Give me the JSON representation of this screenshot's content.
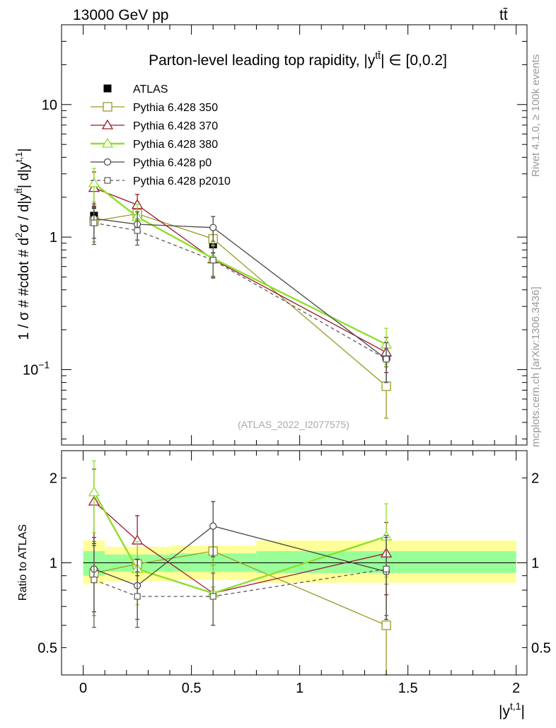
{
  "header": {
    "left": "13000 GeV pp",
    "right": "tt̄"
  },
  "side_labels": {
    "rivet": "Rivet 4.1.0, ≥ 100k events",
    "mcplots": "mcplots.cern.ch [arXiv:1306.3436]"
  },
  "colors": {
    "ATLAS": "#000000",
    "Pythia 6.428 350": "#9a9a26",
    "Pythia 6.428 370": "#9b1a2e",
    "Pythia 6.428 380": "#8fdf2a",
    "Pythia 6.428 p0": "#464646",
    "Pythia 6.428 p2010": "#5a5a5a",
    "band_inner": "#99ff99",
    "band_outer": "#ffff99"
  },
  "chart_data": [
    {
      "type": "line",
      "panel": "main",
      "title": "Parton-level leading top rapidity, |y̅^{tt̄}| ∈ [0,0.2]",
      "title_main": "Parton-level leading top rapidity, |y",
      "title_sup": "tt̄",
      "title_tail": "| ∈ [0,0.2]",
      "watermark": "(ATLAS_2022_I2077575)",
      "ylabel": "1 / σ # #cdot # d²σ / d|y^{tt̄}| d|y^{t,1}|",
      "ylabel_main": "1 / σ # #cdot # d",
      "ylabel_mid": "σ / d|y",
      "ylabel_tail1": "| d|y",
      "ylabel_end": "|",
      "ylabel_sup1": "2",
      "ylabel_sup2": "tt̄",
      "ylabel_sup3": "t,1",
      "yscale": "log",
      "ylim": [
        0.027,
        40
      ],
      "xlim": [
        -0.1,
        2.05
      ],
      "yticks": [
        {
          "value": 10,
          "label": "10",
          "sup": ""
        },
        {
          "value": 1,
          "label": "1",
          "sup": ""
        },
        {
          "value": 0.1,
          "label": "10",
          "sup": "−1"
        }
      ],
      "x": [
        0.05,
        0.25,
        0.6,
        1.4
      ],
      "series": [
        {
          "name": "ATLAS",
          "marker": "square-filled",
          "style": "points",
          "values": [
            1.45,
            1.5,
            0.88,
            0.125
          ],
          "err_low": [
            0.2,
            0.2,
            0.12,
            0.02
          ],
          "err_high": [
            0.2,
            0.2,
            0.12,
            0.02
          ]
        },
        {
          "name": "Pythia 6.428 350",
          "marker": "square-open",
          "style": "solid",
          "values": [
            1.32,
            1.5,
            0.97,
            0.075
          ],
          "err_low": [
            0.4,
            0.35,
            0.25,
            0.032
          ],
          "err_high": [
            0.4,
            0.35,
            0.25,
            0.03
          ]
        },
        {
          "name": "Pythia 6.428 370",
          "marker": "triangle-open",
          "style": "solid",
          "values": [
            2.35,
            1.75,
            0.68,
            0.135
          ],
          "err_low": [
            0.65,
            0.4,
            0.18,
            0.04
          ],
          "err_high": [
            0.75,
            0.35,
            0.18,
            0.04
          ]
        },
        {
          "name": "Pythia 6.428 380",
          "marker": "triangle-open",
          "style": "solid-thick",
          "values": [
            2.55,
            1.42,
            0.69,
            0.155
          ],
          "err_low": [
            0.7,
            0.35,
            0.18,
            0.045
          ],
          "err_high": [
            0.75,
            0.35,
            0.18,
            0.05
          ]
        },
        {
          "name": "Pythia 6.428 p0",
          "marker": "circle-open",
          "style": "solid",
          "values": [
            1.38,
            1.25,
            1.18,
            0.12
          ],
          "err_low": [
            0.4,
            0.3,
            0.25,
            0.04
          ],
          "err_high": [
            0.4,
            0.3,
            0.25,
            0.04
          ]
        },
        {
          "name": "Pythia 6.428 p2010",
          "marker": "square-open-small",
          "style": "dashed",
          "values": [
            1.28,
            1.12,
            0.67,
            0.12
          ],
          "err_low": [
            0.4,
            0.25,
            0.18,
            0.04
          ],
          "err_high": [
            0.4,
            0.25,
            0.18,
            0.04
          ]
        }
      ]
    },
    {
      "type": "line",
      "panel": "ratio",
      "ylabel": "Ratio to ATLAS",
      "xlabel": "|y^{t,1}|",
      "xlabel_main": "|y",
      "xlabel_sup": "t,1",
      "xlabel_end": "|",
      "yscale": "log",
      "ylim": [
        0.4,
        2.5
      ],
      "xlim": [
        -0.1,
        2.05
      ],
      "yticks": [
        {
          "value": 2,
          "label": "2"
        },
        {
          "value": 1,
          "label": "1"
        },
        {
          "value": 0.5,
          "label": "0.5"
        }
      ],
      "xticks": [
        {
          "value": 0,
          "label": "0"
        },
        {
          "value": 0.5,
          "label": "0.5"
        },
        {
          "value": 1,
          "label": "1"
        },
        {
          "value": 1.5,
          "label": "1.5"
        },
        {
          "value": 2,
          "label": "2"
        }
      ],
      "band": [
        {
          "x0": 0.0,
          "x1": 0.1,
          "inner": [
            0.9,
            1.1
          ],
          "outer": [
            0.84,
            1.2
          ]
        },
        {
          "x0": 0.1,
          "x1": 0.4,
          "inner": [
            0.93,
            1.07
          ],
          "outer": [
            0.86,
            1.14
          ]
        },
        {
          "x0": 0.4,
          "x1": 0.8,
          "inner": [
            0.93,
            1.08
          ],
          "outer": [
            0.87,
            1.15
          ]
        },
        {
          "x0": 0.8,
          "x1": 2.0,
          "inner": [
            0.92,
            1.1
          ],
          "outer": [
            0.85,
            1.2
          ]
        }
      ],
      "x": [
        0.05,
        0.25,
        0.6,
        1.4
      ],
      "series": [
        {
          "name": "Pythia 6.428 350",
          "marker": "square-open",
          "style": "solid",
          "values": [
            0.92,
            0.99,
            1.1,
            0.6
          ],
          "err_low": [
            0.27,
            0.23,
            0.28,
            0.26
          ],
          "err_high": [
            0.27,
            0.23,
            0.28,
            0.24
          ]
        },
        {
          "name": "Pythia 6.428 370",
          "marker": "triangle-open",
          "style": "solid",
          "values": [
            1.65,
            1.2,
            0.78,
            1.08
          ],
          "err_low": [
            0.48,
            0.3,
            0.18,
            0.31
          ],
          "err_high": [
            0.5,
            0.27,
            0.2,
            0.31
          ]
        },
        {
          "name": "Pythia 6.428 380",
          "marker": "triangle-open",
          "style": "solid-thick",
          "values": [
            1.78,
            0.95,
            0.78,
            1.24
          ],
          "err_low": [
            0.5,
            0.24,
            0.18,
            0.35
          ],
          "err_high": [
            0.52,
            0.24,
            0.2,
            0.38
          ]
        },
        {
          "name": "Pythia 6.428 p0",
          "marker": "circle-open",
          "style": "solid",
          "values": [
            0.95,
            0.83,
            1.35,
            0.93
          ],
          "err_low": [
            0.28,
            0.2,
            0.3,
            0.3
          ],
          "err_high": [
            0.28,
            0.2,
            0.3,
            0.3
          ]
        },
        {
          "name": "Pythia 6.428 p2010",
          "marker": "square-open-small",
          "style": "dashed",
          "values": [
            0.87,
            0.76,
            0.76,
            0.95
          ],
          "err_low": [
            0.28,
            0.17,
            0.16,
            0.3
          ],
          "err_high": [
            0.28,
            0.17,
            0.16,
            0.3
          ]
        }
      ]
    }
  ]
}
